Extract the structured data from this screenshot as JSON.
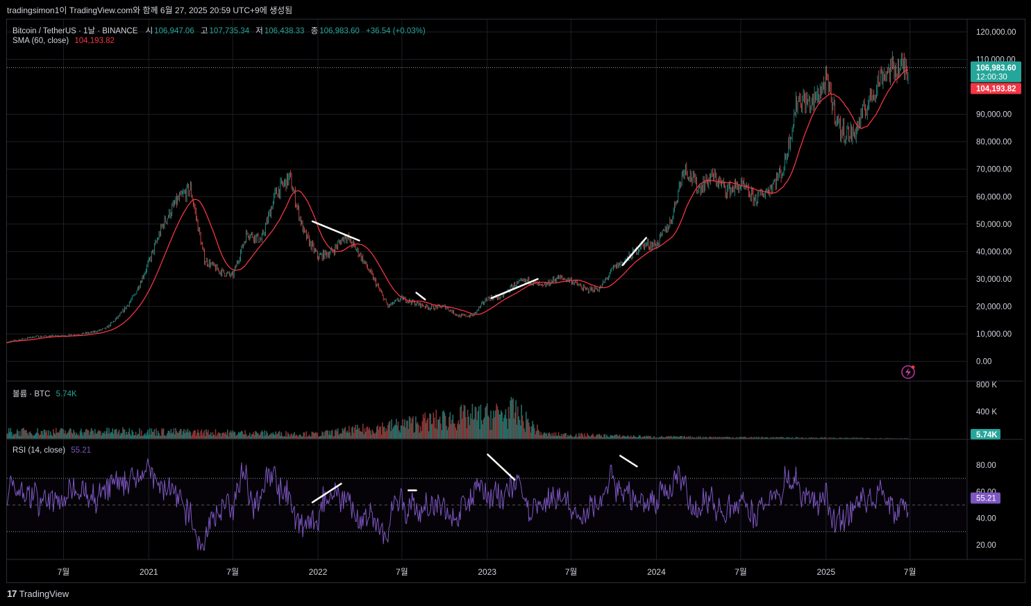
{
  "header": {
    "caption": "tradingsimon1이 TradingView.com와 함께 6월 27, 2025 20:59 UTC+9에 생성됨"
  },
  "legend": {
    "symbol": "Bitcoin / TetherUS · 1날 · BINANCE",
    "open_label": "시",
    "open": "106,947.06",
    "high_label": "고",
    "high": "107,735.34",
    "low_label": "저",
    "low": "106,438.33",
    "close_label": "종",
    "close": "106,983.60",
    "change": "+36.54 (+0.03%)",
    "sma_label": "SMA (60, close)",
    "sma_value": "104,193.82",
    "volume_label": "볼륨 · BTC",
    "volume_value": "5.74K",
    "rsi_label": "RSI (14, close)",
    "rsi_value": "55.21"
  },
  "price_tags": {
    "last": "106,983.60",
    "countdown": "12:00:30",
    "sma": "104,193.82",
    "volume": "5.74K",
    "rsi": "55.21"
  },
  "footer": {
    "brand": "TradingView"
  },
  "colors": {
    "up": "#26a69a",
    "down": "#ef5350",
    "sma": "#f23645",
    "rsi": "#7e57c2",
    "grid": "#1c1f26",
    "axis_text": "#d1d4dc",
    "annotation": "#ffffff"
  },
  "chart_data": [
    {
      "type": "candlestick",
      "title": "Bitcoin / TetherUS · 1날 · BINANCE",
      "x_ticks": [
        "7월",
        "2021",
        "7월",
        "2022",
        "7월",
        "2023",
        "7월",
        "2024",
        "7월",
        "2025",
        "7월"
      ],
      "y_ticks": [
        "0.00",
        "10,000.00",
        "20,000.00",
        "30,000.00",
        "40,000.00",
        "50,000.00",
        "60,000.00",
        "70,000.00",
        "80,000.00",
        "90,000.00",
        "100,000.00",
        "110,000.00",
        "120,000.00"
      ],
      "y_range": [
        0,
        120000
      ],
      "x_range": [
        "2020-03",
        "2025-06"
      ],
      "price_path": [
        [
          "2020-03",
          7000
        ],
        [
          "2020-05",
          9000
        ],
        [
          "2020-07",
          9200
        ],
        [
          "2020-09",
          10500
        ],
        [
          "2020-10",
          12000
        ],
        [
          "2020-11",
          17000
        ],
        [
          "2020-12",
          24000
        ],
        [
          "2021-01",
          36000
        ],
        [
          "2021-02",
          50000
        ],
        [
          "2021-03",
          58000
        ],
        [
          "2021-04",
          63000
        ],
        [
          "2021-05",
          37000
        ],
        [
          "2021-06",
          33000
        ],
        [
          "2021-07",
          31000
        ],
        [
          "2021-08",
          47000
        ],
        [
          "2021-09",
          44000
        ],
        [
          "2021-10",
          61000
        ],
        [
          "2021-11",
          67000
        ],
        [
          "2021-12",
          47000
        ],
        [
          "2022-01",
          38000
        ],
        [
          "2022-02",
          40000
        ],
        [
          "2022-03",
          46000
        ],
        [
          "2022-04",
          39000
        ],
        [
          "2022-05",
          30000
        ],
        [
          "2022-06",
          20000
        ],
        [
          "2022-07",
          23000
        ],
        [
          "2022-08",
          21000
        ],
        [
          "2022-09",
          19500
        ],
        [
          "2022-10",
          20000
        ],
        [
          "2022-11",
          16500
        ],
        [
          "2022-12",
          16600
        ],
        [
          "2023-01",
          23000
        ],
        [
          "2023-02",
          23500
        ],
        [
          "2023-03",
          28000
        ],
        [
          "2023-04",
          29500
        ],
        [
          "2023-05",
          27000
        ],
        [
          "2023-06",
          30500
        ],
        [
          "2023-07",
          29500
        ],
        [
          "2023-08",
          26000
        ],
        [
          "2023-09",
          26500
        ],
        [
          "2023-10",
          34000
        ],
        [
          "2023-11",
          37500
        ],
        [
          "2023-12",
          42500
        ],
        [
          "2024-01",
          42500
        ],
        [
          "2024-02",
          51000
        ],
        [
          "2024-03",
          71000
        ],
        [
          "2024-04",
          63000
        ],
        [
          "2024-05",
          67500
        ],
        [
          "2024-06",
          62500
        ],
        [
          "2024-07",
          64000
        ],
        [
          "2024-08",
          59000
        ],
        [
          "2024-09",
          63000
        ],
        [
          "2024-10",
          70000
        ],
        [
          "2024-11",
          96000
        ],
        [
          "2024-12",
          93500
        ],
        [
          "2025-01",
          102000
        ],
        [
          "2025-02",
          84000
        ],
        [
          "2025-03",
          82500
        ],
        [
          "2025-04",
          94000
        ],
        [
          "2025-05",
          104500
        ],
        [
          "2025-06",
          106983.6
        ]
      ],
      "sma": {
        "name": "SMA (60, close)",
        "last": 104193.82
      },
      "last_price": 106983.6,
      "trendlines_price": [
        [
          [
            "2021-12-20",
            51000
          ],
          [
            "2022-03-31",
            44000
          ]
        ],
        [
          [
            "2022-08-01",
            25000
          ],
          [
            "2022-08-20",
            22500
          ]
        ],
        [
          [
            "2023-01-10",
            23000
          ],
          [
            "2023-04-20",
            30000
          ]
        ],
        [
          [
            "2023-10-20",
            35000
          ],
          [
            "2023-12-10",
            45000
          ]
        ]
      ]
    },
    {
      "type": "bar",
      "title": "볼륨 · BTC",
      "y_ticks": [
        "400 K",
        "800 K"
      ],
      "y_range": [
        0,
        800000
      ],
      "last": 5740,
      "volume_path": [
        [
          "2020-03",
          90000
        ],
        [
          "2021-01",
          95000
        ],
        [
          "2021-06",
          80000
        ],
        [
          "2022-01",
          60000
        ],
        [
          "2022-06",
          160000
        ],
        [
          "2022-11",
          280000
        ],
        [
          "2023-01",
          300000
        ],
        [
          "2023-03",
          350000
        ],
        [
          "2023-05",
          60000
        ],
        [
          "2024-01",
          25000
        ],
        [
          "2025-06",
          6000
        ]
      ]
    },
    {
      "type": "line",
      "title": "RSI (14, close)",
      "y_ticks": [
        "20.00",
        "40.00",
        "60.00",
        "80.00"
      ],
      "y_range": [
        13,
        97
      ],
      "bands": [
        30,
        50,
        70
      ],
      "last": 55.21,
      "trendlines_rsi": [
        [
          [
            "2021-12-20",
            52
          ],
          [
            "2022-02-20",
            66
          ]
        ],
        [
          [
            "2022-07-15",
            61
          ],
          [
            "2022-08-01",
            61
          ]
        ],
        [
          [
            "2023-01-02",
            88
          ],
          [
            "2023-03-01",
            69
          ]
        ],
        [
          [
            "2023-10-15",
            87
          ],
          [
            "2023-11-20",
            79
          ]
        ]
      ]
    }
  ]
}
